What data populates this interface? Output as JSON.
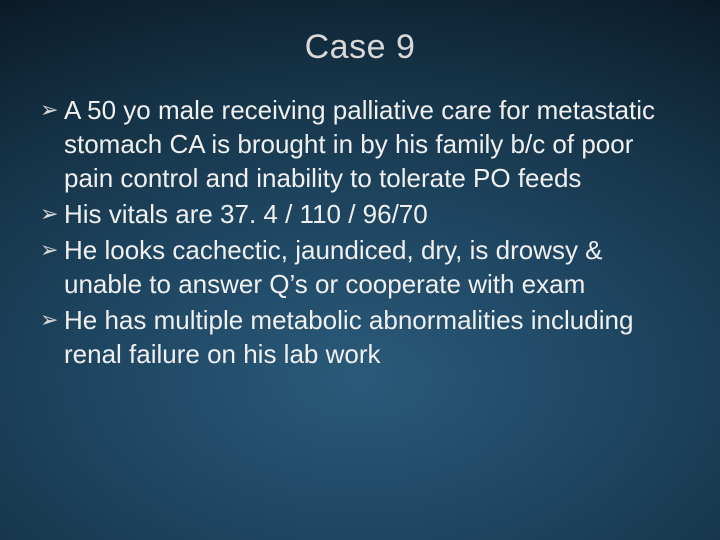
{
  "slide": {
    "title": "Case 9",
    "title_fontsize": 34,
    "title_color": "#d8d8d8",
    "body_fontsize": 26,
    "body_line_height": 34,
    "body_color": "#f0f0f0",
    "bullet_marker": "➢",
    "bullet_marker_color": "#d8d8d8",
    "background": {
      "type": "radial-gradient",
      "stops": [
        "#2a5a7a",
        "#1e4560",
        "#163448",
        "#0c1f2e",
        "#061118"
      ]
    },
    "bullets": [
      "A 50 yo male receiving palliative care for metastatic stomach CA is brought in by his family b/c of poor pain control and inability to tolerate PO feeds",
      "His vitals are 37. 4 / 110 / 96/70",
      "He looks cachectic, jaundiced, dry, is drowsy & unable to answer Q’s or cooperate with exam",
      "He has multiple metabolic abnormalities including renal failure on his lab work"
    ]
  }
}
